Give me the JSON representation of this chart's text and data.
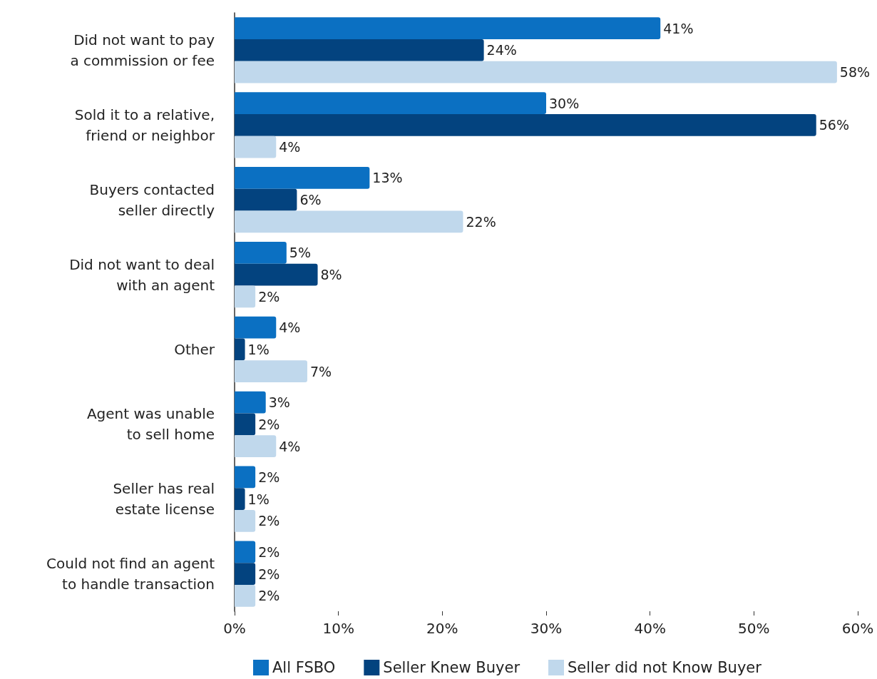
{
  "chart_data": {
    "type": "bar",
    "orientation": "horizontal",
    "categories": [
      "Did not want to pay\na commission or fee",
      "Sold it to a relative,\nfriend or neighbor",
      "Buyers contacted\nseller directly",
      "Did not want to deal\nwith an agent",
      "Other",
      "Agent was unable\nto sell home",
      "Seller has real\nestate license",
      "Could not find an agent\nto handle transaction"
    ],
    "series": [
      {
        "name": "All FSBO",
        "color": "#0b70c2",
        "values": [
          41,
          30,
          13,
          5,
          4,
          3,
          2,
          2
        ],
        "value_labels": [
          "41%",
          "30%",
          "13%",
          "5%",
          "4%",
          "3%",
          "2%",
          "2%"
        ]
      },
      {
        "name": "Seller Knew Buyer",
        "color": "#03437f",
        "values": [
          24,
          56,
          6,
          8,
          1,
          2,
          1,
          2
        ],
        "value_labels": [
          "24%",
          "56%",
          "6%",
          "8%",
          "1%",
          "2%",
          "1%",
          "2%"
        ]
      },
      {
        "name": "Seller did not Know Buyer",
        "color": "#c0d8ec",
        "values": [
          58,
          4,
          22,
          2,
          7,
          4,
          2,
          2
        ],
        "value_labels": [
          "58%",
          "4%",
          "22%",
          "2%",
          "7%",
          "4%",
          "2%",
          "2%"
        ]
      }
    ],
    "xlim": [
      0,
      60
    ],
    "xticks": [
      {
        "value": 0,
        "label": "0%"
      },
      {
        "value": 10,
        "label": "10%"
      },
      {
        "value": 20,
        "label": "20%"
      },
      {
        "value": 30,
        "label": "30%"
      },
      {
        "value": 40,
        "label": "40%"
      },
      {
        "value": 50,
        "label": "50%"
      },
      {
        "value": 60,
        "label": "60%"
      }
    ],
    "grid": false,
    "legend": "bottom"
  }
}
